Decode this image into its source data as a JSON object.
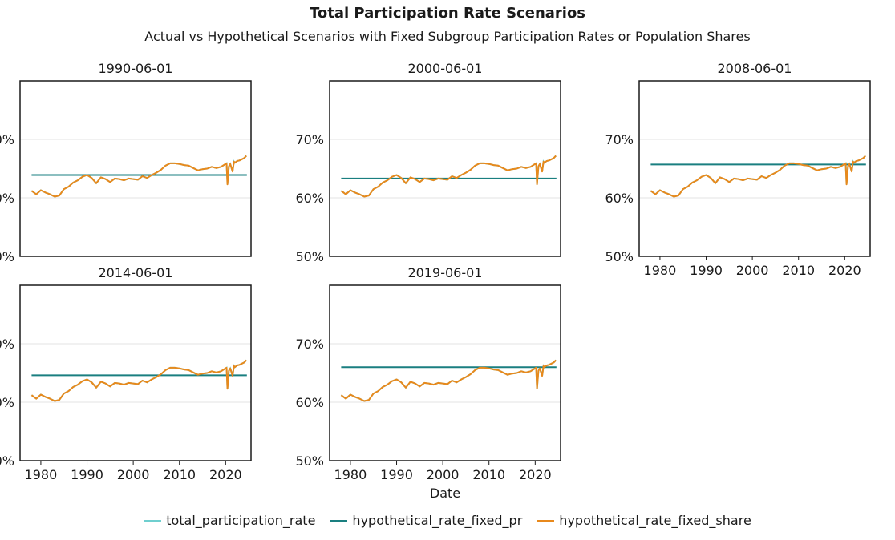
{
  "chart_data": {
    "type": "line",
    "title": "Total Participation Rate Scenarios",
    "subtitle": "Actual vs Hypothetical Scenarios with Fixed Subgroup Participation Rates or Population Shares",
    "xlabel": "Date",
    "x_ticks": [
      1980,
      1990,
      2000,
      2010,
      2020
    ],
    "y_ticks": [
      "50%",
      "60%",
      "70%"
    ],
    "xlim": [
      1975.5,
      2025.5
    ],
    "ylim": [
      50,
      80
    ],
    "grid": "y",
    "legend_position": "bottom",
    "colors": {
      "total_participation_rate": "#6fcfcf",
      "hypothetical_rate_fixed_pr": "#1a7f80",
      "hypothetical_rate_fixed_share": "#e8891c"
    },
    "series_names": [
      "total_participation_rate",
      "hypothetical_rate_fixed_pr",
      "hypothetical_rate_fixed_share"
    ],
    "actual_series": {
      "x": [
        1978,
        1979,
        1980,
        1981,
        1982,
        1983,
        1984,
        1985,
        1986,
        1987,
        1988,
        1989,
        1990,
        1991,
        1992,
        1993,
        1994,
        1995,
        1996,
        1997,
        1998,
        1999,
        2000,
        2001,
        2002,
        2003,
        2004,
        2005,
        2006,
        2007,
        2008,
        2009,
        2010,
        2011,
        2012,
        2013,
        2014,
        2015,
        2016,
        2017,
        2018,
        2019,
        2020.2,
        2020.4,
        2020.7,
        2021,
        2021.5,
        2021.8,
        2022,
        2022.5,
        2023,
        2024,
        2024.5
      ],
      "values": [
        61.2,
        60.6,
        61.3,
        60.9,
        60.6,
        60.2,
        60.4,
        61.5,
        61.9,
        62.6,
        63.0,
        63.6,
        63.9,
        63.4,
        62.5,
        63.5,
        63.2,
        62.7,
        63.3,
        63.2,
        63.0,
        63.3,
        63.2,
        63.1,
        63.7,
        63.4,
        63.9,
        64.3,
        64.8,
        65.5,
        65.9,
        65.9,
        65.8,
        65.6,
        65.5,
        65.1,
        64.7,
        64.9,
        65.0,
        65.3,
        65.1,
        65.3,
        65.9,
        62.3,
        65.4,
        65.8,
        64.5,
        66.2,
        66.0,
        66.3,
        66.4,
        66.8,
        67.2
      ]
    },
    "panels": [
      {
        "label": "1990-06-01",
        "fixed_pr": 63.9
      },
      {
        "label": "2000-06-01",
        "fixed_pr": 63.3
      },
      {
        "label": "2008-06-01",
        "fixed_pr": 65.7
      },
      {
        "label": "2014-06-01",
        "fixed_pr": 64.6
      },
      {
        "label": "2019-06-01",
        "fixed_pr": 66.0
      }
    ]
  }
}
